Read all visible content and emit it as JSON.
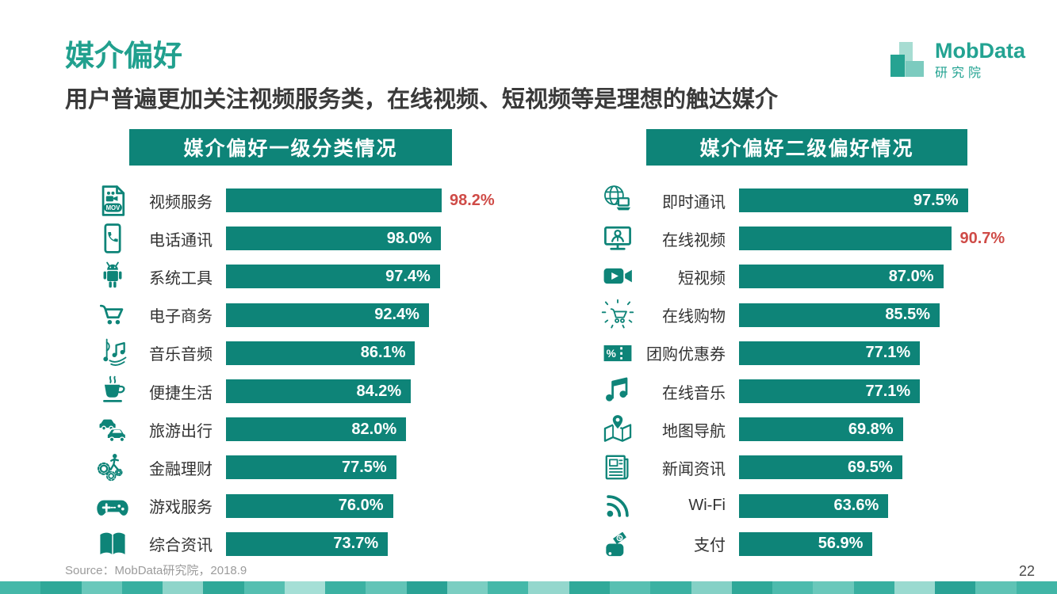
{
  "page": {
    "title": "媒介偏好",
    "subtitle": "用户普遍更加关注视频服务类，在线视频、短视频等是理想的触达媒介",
    "source": "Source：MobData研究院，2018.9",
    "page_number": "22"
  },
  "logo": {
    "brand": "MobData",
    "sub": "研究院"
  },
  "theme": {
    "bar_teal": "#0e8478",
    "title_teal": "#21a08e",
    "emphasis_red": "#cf4b47",
    "text_dark": "#3a3a3a",
    "text_gray": "#9b9b9b",
    "footer_strip_colors": [
      "#45b8a9",
      "#2fa898",
      "#6ac8bb",
      "#38afa0",
      "#8fd5ca",
      "#2fa898",
      "#55bfb1",
      "#a5dfd6",
      "#3bb1a2",
      "#62c4b7",
      "#2aa295",
      "#7bcec2",
      "#45b8a9",
      "#94d7cd",
      "#30a999",
      "#58c0b2",
      "#3bb1a2",
      "#85d1c6",
      "#2fa898",
      "#4dbbad",
      "#6ac8bb",
      "#38afa0",
      "#9adad0",
      "#2aa295",
      "#5fc3b5",
      "#41b5a6"
    ]
  },
  "chart_data": [
    {
      "type": "bar",
      "title": "媒介偏好一级分类情况",
      "orientation": "horizontal",
      "unit": "%",
      "xlim": [
        0,
        100
      ],
      "value_label_style": "inside bar, white; max value shown outside in red",
      "rows": [
        {
          "label": "视频服务",
          "value": 98.2,
          "display": "98.2%",
          "icon": "video-file-icon",
          "value_outside": true
        },
        {
          "label": "电话通讯",
          "value": 98.0,
          "display": "98.0%",
          "icon": "phone-call-icon",
          "value_outside": false
        },
        {
          "label": "系统工具",
          "value": 97.4,
          "display": "97.4%",
          "icon": "android-robot-icon",
          "value_outside": false
        },
        {
          "label": "电子商务",
          "value": 92.4,
          "display": "92.4%",
          "icon": "shopping-cart-icon",
          "value_outside": false
        },
        {
          "label": "音乐音频",
          "value": 86.1,
          "display": "86.1%",
          "icon": "music-notes-icon",
          "value_outside": false
        },
        {
          "label": "便捷生活",
          "value": 84.2,
          "display": "84.2%",
          "icon": "coffee-cup-icon",
          "value_outside": false
        },
        {
          "label": "旅游出行",
          "value": 82.0,
          "display": "82.0%",
          "icon": "cars-icon",
          "value_outside": false
        },
        {
          "label": "金融理财",
          "value": 77.5,
          "display": "77.5%",
          "icon": "finance-gears-icon",
          "value_outside": false
        },
        {
          "label": "游戏服务",
          "value": 76.0,
          "display": "76.0%",
          "icon": "gamepad-icon",
          "value_outside": false
        },
        {
          "label": "综合资讯",
          "value": 73.7,
          "display": "73.7%",
          "icon": "open-book-icon",
          "value_outside": false
        }
      ]
    },
    {
      "type": "bar",
      "title": "媒介偏好二级偏好情况",
      "orientation": "horizontal",
      "unit": "%",
      "xlim": [
        0,
        100
      ],
      "value_label_style": "inside bar, white; highlighted value (在线视频) shown outside in red",
      "rows": [
        {
          "label": "即时通讯",
          "value": 97.5,
          "display": "97.5%",
          "icon": "globe-computer-icon",
          "value_outside": false
        },
        {
          "label": "在线视频",
          "value": 90.7,
          "display": "90.7%",
          "icon": "monitor-person-icon",
          "value_outside": true
        },
        {
          "label": "短视频",
          "value": 87.0,
          "display": "87.0%",
          "icon": "video-camera-icon",
          "value_outside": false
        },
        {
          "label": "在线购物",
          "value": 85.5,
          "display": "85.5%",
          "icon": "sparkle-cart-icon",
          "value_outside": false
        },
        {
          "label": "团购优惠券",
          "value": 77.1,
          "display": "77.1%",
          "icon": "coupon-percent-icon",
          "value_outside": false
        },
        {
          "label": "在线音乐",
          "value": 77.1,
          "display": "77.1%",
          "icon": "music-note-icon",
          "value_outside": false
        },
        {
          "label": "地图导航",
          "value": 69.8,
          "display": "69.8%",
          "icon": "map-pin-icon",
          "value_outside": false
        },
        {
          "label": "新闻资讯",
          "value": 69.5,
          "display": "69.5%",
          "icon": "newspaper-icon",
          "value_outside": false
        },
        {
          "label": "Wi-Fi",
          "value": 63.6,
          "display": "63.6%",
          "icon": "wifi-icon",
          "value_outside": false
        },
        {
          "label": "支付",
          "value": 56.9,
          "display": "56.9%",
          "icon": "payment-card-icon",
          "value_outside": false
        }
      ]
    }
  ]
}
